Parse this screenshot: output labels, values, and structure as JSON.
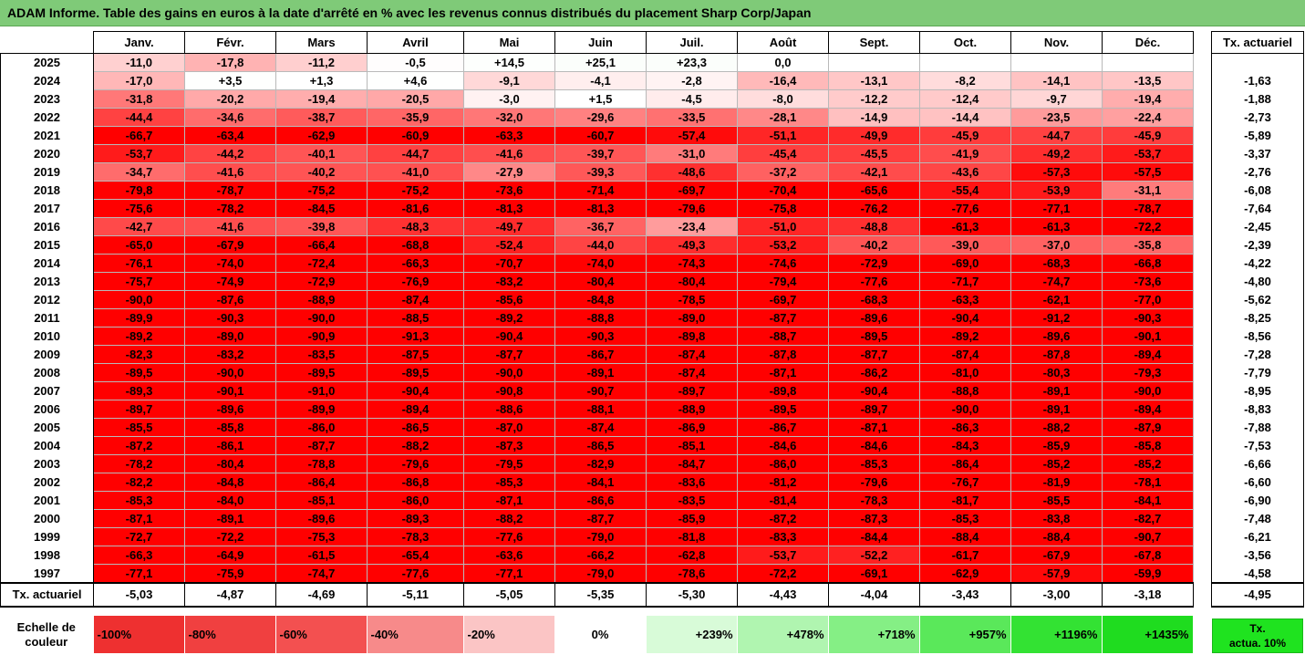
{
  "title": "ADAM Informe. Table des gains en euros à la date d'arrêté en % avec les revenus connus distribués du placement Sharp Corp/Japan",
  "months": [
    "Janv.",
    "Févr.",
    "Mars",
    "Avril",
    "Mai",
    "Juin",
    "Juil.",
    "Août",
    "Sept.",
    "Oct.",
    "Nov.",
    "Déc."
  ],
  "rate_header": "Tx. actuariel",
  "rows": [
    {
      "year": "2025",
      "values": [
        "-11,0",
        "-17,8",
        "-11,2",
        "-0,5",
        "+14,5",
        "+25,1",
        "+23,3",
        "0,0",
        "",
        "",
        "",
        ""
      ],
      "rate": ""
    },
    {
      "year": "2024",
      "values": [
        "-17,0",
        "+3,5",
        "+1,3",
        "+4,6",
        "-9,1",
        "-4,1",
        "-2,8",
        "-16,4",
        "-13,1",
        "-8,2",
        "-14,1",
        "-13,5"
      ],
      "rate": "-1,63"
    },
    {
      "year": "2023",
      "values": [
        "-31,8",
        "-20,2",
        "-19,4",
        "-20,5",
        "-3,0",
        "+1,5",
        "-4,5",
        "-8,0",
        "-12,2",
        "-12,4",
        "-9,7",
        "-19,4"
      ],
      "rate": "-1,88"
    },
    {
      "year": "2022",
      "values": [
        "-44,4",
        "-34,6",
        "-38,7",
        "-35,9",
        "-32,0",
        "-29,6",
        "-33,5",
        "-28,1",
        "-14,9",
        "-14,4",
        "-23,5",
        "-22,4"
      ],
      "rate": "-2,73"
    },
    {
      "year": "2021",
      "values": [
        "-66,7",
        "-63,4",
        "-62,9",
        "-60,9",
        "-63,3",
        "-60,7",
        "-57,4",
        "-51,1",
        "-49,9",
        "-45,9",
        "-44,7",
        "-45,9"
      ],
      "rate": "-5,89"
    },
    {
      "year": "2020",
      "values": [
        "-53,7",
        "-44,2",
        "-40,1",
        "-44,7",
        "-41,6",
        "-39,7",
        "-31,0",
        "-45,4",
        "-45,5",
        "-41,9",
        "-49,2",
        "-53,7"
      ],
      "rate": "-3,37"
    },
    {
      "year": "2019",
      "values": [
        "-34,7",
        "-41,6",
        "-40,2",
        "-41,0",
        "-27,9",
        "-39,3",
        "-48,6",
        "-37,2",
        "-42,1",
        "-43,6",
        "-57,3",
        "-57,5"
      ],
      "rate": "-2,76"
    },
    {
      "year": "2018",
      "values": [
        "-79,8",
        "-78,7",
        "-75,2",
        "-75,2",
        "-73,6",
        "-71,4",
        "-69,7",
        "-70,4",
        "-65,6",
        "-55,4",
        "-53,9",
        "-31,1"
      ],
      "rate": "-6,08"
    },
    {
      "year": "2017",
      "values": [
        "-75,6",
        "-78,2",
        "-84,5",
        "-81,6",
        "-81,3",
        "-81,3",
        "-79,6",
        "-75,8",
        "-76,2",
        "-77,6",
        "-77,1",
        "-78,7"
      ],
      "rate": "-7,64"
    },
    {
      "year": "2016",
      "values": [
        "-42,7",
        "-41,6",
        "-39,8",
        "-48,3",
        "-49,7",
        "-36,7",
        "-23,4",
        "-51,0",
        "-48,8",
        "-61,3",
        "-61,3",
        "-72,2"
      ],
      "rate": "-2,45"
    },
    {
      "year": "2015",
      "values": [
        "-65,0",
        "-67,9",
        "-66,4",
        "-68,8",
        "-52,4",
        "-44,0",
        "-49,3",
        "-53,2",
        "-40,2",
        "-39,0",
        "-37,0",
        "-35,8"
      ],
      "rate": "-2,39"
    },
    {
      "year": "2014",
      "values": [
        "-76,1",
        "-74,0",
        "-72,4",
        "-66,3",
        "-70,7",
        "-74,0",
        "-74,3",
        "-74,6",
        "-72,9",
        "-69,0",
        "-68,3",
        "-66,8"
      ],
      "rate": "-4,22"
    },
    {
      "year": "2013",
      "values": [
        "-75,7",
        "-74,9",
        "-72,9",
        "-76,9",
        "-83,2",
        "-80,4",
        "-80,4",
        "-79,4",
        "-77,6",
        "-71,7",
        "-74,7",
        "-73,6"
      ],
      "rate": "-4,80"
    },
    {
      "year": "2012",
      "values": [
        "-90,0",
        "-87,6",
        "-88,9",
        "-87,4",
        "-85,6",
        "-84,8",
        "-78,5",
        "-69,7",
        "-68,3",
        "-63,3",
        "-62,1",
        "-77,0"
      ],
      "rate": "-5,62"
    },
    {
      "year": "2011",
      "values": [
        "-89,9",
        "-90,3",
        "-90,0",
        "-88,5",
        "-89,2",
        "-88,8",
        "-89,0",
        "-87,7",
        "-89,6",
        "-90,4",
        "-91,2",
        "-90,3"
      ],
      "rate": "-8,25"
    },
    {
      "year": "2010",
      "values": [
        "-89,2",
        "-89,0",
        "-90,9",
        "-91,3",
        "-90,4",
        "-90,3",
        "-89,8",
        "-88,7",
        "-89,5",
        "-89,2",
        "-89,6",
        "-90,1"
      ],
      "rate": "-8,56"
    },
    {
      "year": "2009",
      "values": [
        "-82,3",
        "-83,2",
        "-83,5",
        "-87,5",
        "-87,7",
        "-86,7",
        "-87,4",
        "-87,8",
        "-87,7",
        "-87,4",
        "-87,8",
        "-89,4"
      ],
      "rate": "-7,28"
    },
    {
      "year": "2008",
      "values": [
        "-89,5",
        "-90,0",
        "-89,5",
        "-89,5",
        "-90,0",
        "-89,1",
        "-87,4",
        "-87,1",
        "-86,2",
        "-81,0",
        "-80,3",
        "-79,3"
      ],
      "rate": "-7,79"
    },
    {
      "year": "2007",
      "values": [
        "-89,3",
        "-90,1",
        "-91,0",
        "-90,4",
        "-90,8",
        "-90,7",
        "-89,7",
        "-89,8",
        "-90,4",
        "-88,8",
        "-89,1",
        "-90,0"
      ],
      "rate": "-8,95"
    },
    {
      "year": "2006",
      "values": [
        "-89,7",
        "-89,6",
        "-89,9",
        "-89,4",
        "-88,6",
        "-88,1",
        "-88,9",
        "-89,5",
        "-89,7",
        "-90,0",
        "-89,1",
        "-89,4"
      ],
      "rate": "-8,83"
    },
    {
      "year": "2005",
      "values": [
        "-85,5",
        "-85,8",
        "-86,0",
        "-86,5",
        "-87,0",
        "-87,4",
        "-86,9",
        "-86,7",
        "-87,1",
        "-86,3",
        "-88,2",
        "-87,9"
      ],
      "rate": "-7,88"
    },
    {
      "year": "2004",
      "values": [
        "-87,2",
        "-86,1",
        "-87,7",
        "-88,2",
        "-87,3",
        "-86,5",
        "-85,1",
        "-84,6",
        "-84,6",
        "-84,3",
        "-85,9",
        "-85,8"
      ],
      "rate": "-7,53"
    },
    {
      "year": "2003",
      "values": [
        "-78,2",
        "-80,4",
        "-78,8",
        "-79,6",
        "-79,5",
        "-82,9",
        "-84,7",
        "-86,0",
        "-85,3",
        "-86,4",
        "-85,2",
        "-85,2"
      ],
      "rate": "-6,66"
    },
    {
      "year": "2002",
      "values": [
        "-82,2",
        "-84,8",
        "-86,4",
        "-86,8",
        "-85,3",
        "-84,1",
        "-83,6",
        "-81,2",
        "-79,6",
        "-76,7",
        "-81,9",
        "-78,1"
      ],
      "rate": "-6,60"
    },
    {
      "year": "2001",
      "values": [
        "-85,3",
        "-84,0",
        "-85,1",
        "-86,0",
        "-87,1",
        "-86,6",
        "-83,5",
        "-81,4",
        "-78,3",
        "-81,7",
        "-85,5",
        "-84,1"
      ],
      "rate": "-6,90"
    },
    {
      "year": "2000",
      "values": [
        "-87,1",
        "-89,1",
        "-89,6",
        "-89,3",
        "-88,2",
        "-87,7",
        "-85,9",
        "-87,2",
        "-87,3",
        "-85,3",
        "-83,8",
        "-82,7"
      ],
      "rate": "-7,48"
    },
    {
      "year": "1999",
      "values": [
        "-72,7",
        "-72,2",
        "-75,3",
        "-78,3",
        "-77,6",
        "-79,0",
        "-81,8",
        "-83,3",
        "-84,4",
        "-88,4",
        "-88,4",
        "-90,7"
      ],
      "rate": "-6,21"
    },
    {
      "year": "1998",
      "values": [
        "-66,3",
        "-64,9",
        "-61,5",
        "-65,4",
        "-63,6",
        "-66,2",
        "-62,8",
        "-53,7",
        "-52,2",
        "-61,7",
        "-67,9",
        "-67,8"
      ],
      "rate": "-3,56"
    },
    {
      "year": "1997",
      "values": [
        "-77,1",
        "-75,9",
        "-74,7",
        "-77,6",
        "-77,1",
        "-79,0",
        "-78,6",
        "-72,2",
        "-69,1",
        "-62,9",
        "-57,9",
        "-59,9"
      ],
      "rate": "-4,58"
    }
  ],
  "footer": {
    "label": "Tx. actuariel",
    "values": [
      "-5,03",
      "-4,87",
      "-4,69",
      "-5,11",
      "-5,05",
      "-5,35",
      "-5,30",
      "-4,43",
      "-4,04",
      "-3,43",
      "-3,00",
      "-3,18"
    ],
    "overall": "-4,95"
  },
  "scale": {
    "label_line1": "Echelle de",
    "label_line2": "couleur",
    "steps": [
      {
        "label": "-100%",
        "color": "#ee3030",
        "kind": "neg"
      },
      {
        "label": "-80%",
        "color": "#f04040",
        "kind": "neg"
      },
      {
        "label": "-60%",
        "color": "#f35050",
        "kind": "neg"
      },
      {
        "label": "-40%",
        "color": "#f78a8a",
        "kind": "neg"
      },
      {
        "label": "-20%",
        "color": "#fbc5c5",
        "kind": "neg"
      },
      {
        "label": "0%",
        "color": "#ffffff",
        "kind": "mid"
      },
      {
        "label": "+239%",
        "color": "#d8fbd8",
        "kind": "pos"
      },
      {
        "label": "+478%",
        "color": "#b0f5b0",
        "kind": "pos"
      },
      {
        "label": "+718%",
        "color": "#85ef85",
        "kind": "pos"
      },
      {
        "label": "+957%",
        "color": "#5ae85a",
        "kind": "pos"
      },
      {
        "label": "+1196%",
        "color": "#33e233",
        "kind": "pos"
      },
      {
        "label": "+1435%",
        "color": "#1fdc1f",
        "kind": "pos"
      }
    ],
    "rate_legend_line1": "Tx.",
    "rate_legend_line2": "actua. 10%",
    "rate_legend_color": "#1fe31f"
  }
}
